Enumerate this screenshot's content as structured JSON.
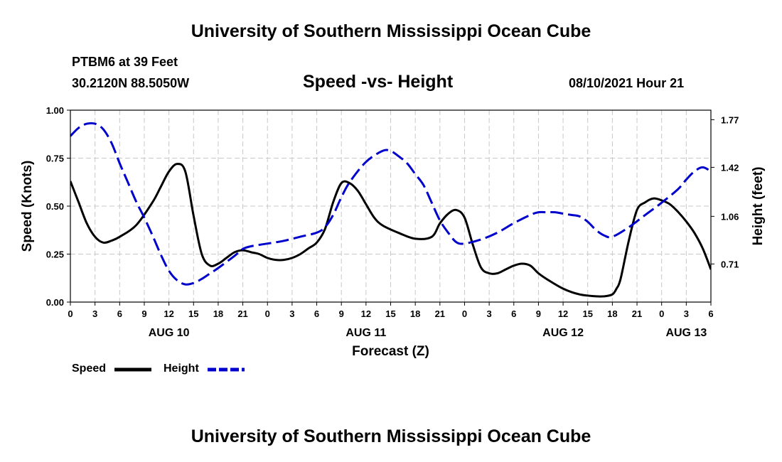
{
  "header": {
    "title": "University of Southern Mississippi Ocean Cube",
    "station": "PTBM6 at 39 Feet",
    "coords": "30.2120N  88.5050W",
    "timestamp": "08/10/2021 Hour 21"
  },
  "footer": {
    "title": "University of Southern Mississippi Ocean Cube"
  },
  "chart_data": {
    "type": "line",
    "title": "Speed -vs- Height",
    "xlabel": "Forecast (Z)",
    "ylabel_left": "Speed (Knots)",
    "ylabel_right": "Height (feet)",
    "x_range_hours": [
      0,
      78
    ],
    "x_ticks_hours": [
      0,
      3,
      6,
      9,
      12,
      15,
      18,
      21,
      24,
      27,
      30,
      33,
      36,
      39,
      42,
      45,
      48,
      51,
      54,
      57,
      60,
      63,
      66,
      69,
      72,
      75,
      78
    ],
    "x_tick_labels": [
      "0",
      "3",
      "6",
      "9",
      "12",
      "15",
      "18",
      "21",
      "0",
      "3",
      "6",
      "9",
      "12",
      "15",
      "18",
      "21",
      "0",
      "3",
      "6",
      "9",
      "12",
      "15",
      "18",
      "21",
      "0",
      "3",
      "6"
    ],
    "day_labels": [
      {
        "label": "AUG 10",
        "hour": 12
      },
      {
        "label": "AUG 11",
        "hour": 36
      },
      {
        "label": "AUG 12",
        "hour": 60
      },
      {
        "label": "AUG 13",
        "hour": 75
      }
    ],
    "y_left": {
      "range": [
        0,
        1.0
      ],
      "ticks": [
        0.0,
        0.25,
        0.5,
        0.75,
        1.0
      ],
      "tick_labels": [
        "0.00",
        "0.25",
        "0.50",
        "0.75",
        "1.00"
      ]
    },
    "y_right": {
      "range": [
        0.43,
        1.84
      ],
      "ticks": [
        0.71,
        1.06,
        1.42,
        1.77
      ],
      "tick_labels": [
        "0.71",
        "1.06",
        "1.42",
        "1.77"
      ]
    },
    "grid": true,
    "legend_position": "bottom-left",
    "series": [
      {
        "name": "Speed",
        "axis": "left",
        "color": "#000000",
        "dash": "solid",
        "x": [
          0,
          1,
          2,
          3,
          4,
          5,
          6,
          8,
          10,
          11,
          12,
          13,
          14,
          15,
          16,
          17,
          18,
          19,
          20,
          21,
          22,
          23,
          24,
          25,
          26,
          27,
          28,
          29,
          30,
          31,
          32,
          33,
          34,
          35,
          36,
          37,
          38,
          40,
          42,
          44,
          45,
          46,
          47,
          48,
          49,
          50,
          51,
          52,
          53,
          54,
          55,
          56,
          57,
          58,
          60,
          62,
          64,
          65,
          66,
          66.5,
          67,
          68,
          69,
          70,
          71,
          72,
          73,
          74,
          75,
          76,
          77,
          78
        ],
        "values": [
          0.63,
          0.52,
          0.41,
          0.34,
          0.31,
          0.32,
          0.34,
          0.4,
          0.52,
          0.6,
          0.68,
          0.72,
          0.68,
          0.45,
          0.25,
          0.19,
          0.2,
          0.23,
          0.26,
          0.27,
          0.26,
          0.25,
          0.23,
          0.22,
          0.22,
          0.23,
          0.25,
          0.28,
          0.31,
          0.38,
          0.52,
          0.62,
          0.62,
          0.58,
          0.51,
          0.44,
          0.4,
          0.36,
          0.33,
          0.34,
          0.41,
          0.46,
          0.48,
          0.44,
          0.3,
          0.18,
          0.15,
          0.15,
          0.17,
          0.19,
          0.2,
          0.19,
          0.15,
          0.12,
          0.07,
          0.04,
          0.03,
          0.03,
          0.04,
          0.07,
          0.12,
          0.32,
          0.48,
          0.52,
          0.54,
          0.53,
          0.51,
          0.47,
          0.42,
          0.36,
          0.28,
          0.17
        ]
      },
      {
        "name": "Height",
        "axis": "right",
        "color": "#0000cc",
        "dash": "dashed",
        "x": [
          0,
          1,
          2,
          3,
          4,
          5,
          6,
          7,
          8,
          9,
          10,
          11,
          12,
          13,
          14,
          15,
          16,
          17,
          18,
          20,
          21,
          22,
          24,
          26,
          28,
          30,
          31,
          32,
          33,
          34,
          36,
          38,
          39,
          40,
          41,
          42,
          43,
          44,
          45,
          46,
          47,
          48,
          50,
          52,
          54,
          56,
          57,
          58,
          59,
          60,
          61,
          62,
          63,
          64,
          65,
          66,
          68,
          70,
          72,
          74,
          75,
          76,
          77,
          78
        ],
        "values": [
          1.65,
          1.71,
          1.74,
          1.74,
          1.7,
          1.6,
          1.45,
          1.31,
          1.17,
          1.05,
          0.92,
          0.78,
          0.66,
          0.59,
          0.56,
          0.57,
          0.6,
          0.64,
          0.68,
          0.77,
          0.82,
          0.84,
          0.86,
          0.88,
          0.91,
          0.94,
          0.98,
          1.07,
          1.2,
          1.31,
          1.46,
          1.54,
          1.54,
          1.5,
          1.45,
          1.37,
          1.29,
          1.16,
          1.03,
          0.94,
          0.87,
          0.86,
          0.89,
          0.94,
          1.01,
          1.07,
          1.09,
          1.09,
          1.09,
          1.08,
          1.07,
          1.06,
          1.02,
          0.96,
          0.92,
          0.91,
          0.98,
          1.07,
          1.16,
          1.26,
          1.33,
          1.39,
          1.42,
          1.39
        ]
      }
    ]
  }
}
